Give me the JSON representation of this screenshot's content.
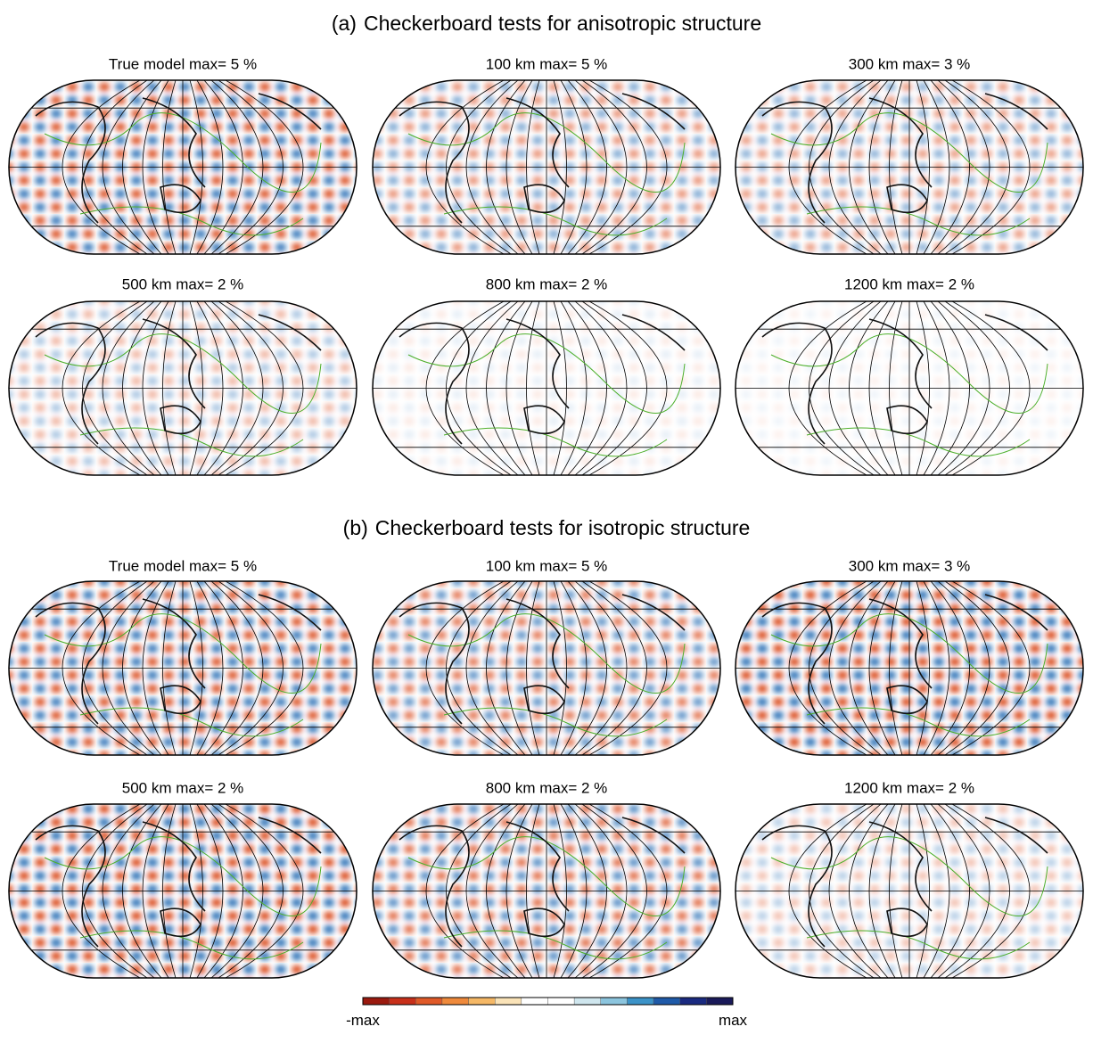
{
  "sections": [
    {
      "label": "(a)",
      "title": "Checkerboard tests for anisotropic structure",
      "panels": [
        "True model  max= 5 %",
        "100 km  max= 5 %",
        "300 km  max= 3 %",
        "500 km  max= 2 %",
        "800 km  max= 2 %",
        "1200 km  max= 2 %"
      ]
    },
    {
      "label": "(b)",
      "title": "Checkerboard tests for isotropic structure",
      "panels": [
        "True model  max= 5 %",
        "100 km  max= 5 %",
        "300 km  max= 3 %",
        "500 km  max= 2 %",
        "800 km  max= 2 %",
        "1200 km  max= 2 %"
      ]
    }
  ],
  "colorbar": {
    "min_label": "-max",
    "max_label": "max",
    "colors": [
      "#9b1a0f",
      "#c8301a",
      "#e05a28",
      "#ef8a3c",
      "#f5b866",
      "#fae3b8",
      "#ffffff",
      "#ffffff",
      "#cfe6ee",
      "#8cc5de",
      "#3c93c8",
      "#1f5aa8",
      "#1a2a80",
      "#1a1a5a"
    ]
  }
}
